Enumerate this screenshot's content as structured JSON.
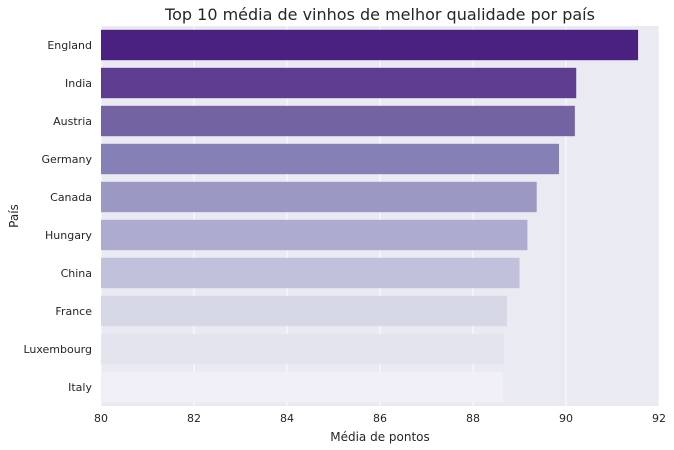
{
  "chart_data": {
    "type": "bar",
    "orientation": "horizontal",
    "title": "Top 10 média de vinhos de melhor qualidade por país",
    "xlabel": "Média de pontos",
    "ylabel": "País",
    "xlim": [
      80,
      92
    ],
    "xticks": [
      "80",
      "82",
      "84",
      "86",
      "88",
      "90",
      "92"
    ],
    "grid": true,
    "background": "#eaeaf2",
    "categories": [
      "England",
      "India",
      "Austria",
      "Germany",
      "Canada",
      "Hungary",
      "China",
      "France",
      "Luxembourg",
      "Italy"
    ],
    "values": [
      91.55,
      90.22,
      90.19,
      89.85,
      89.37,
      89.17,
      89.0,
      88.73,
      88.67,
      88.64
    ],
    "colors": [
      "#4a2080",
      "#5e3d91",
      "#7363a2",
      "#8581b6",
      "#9b99c3",
      "#aeabd0",
      "#c1c1db",
      "#d6d8e6",
      "#e4e4ee",
      "#f1eff8"
    ]
  }
}
